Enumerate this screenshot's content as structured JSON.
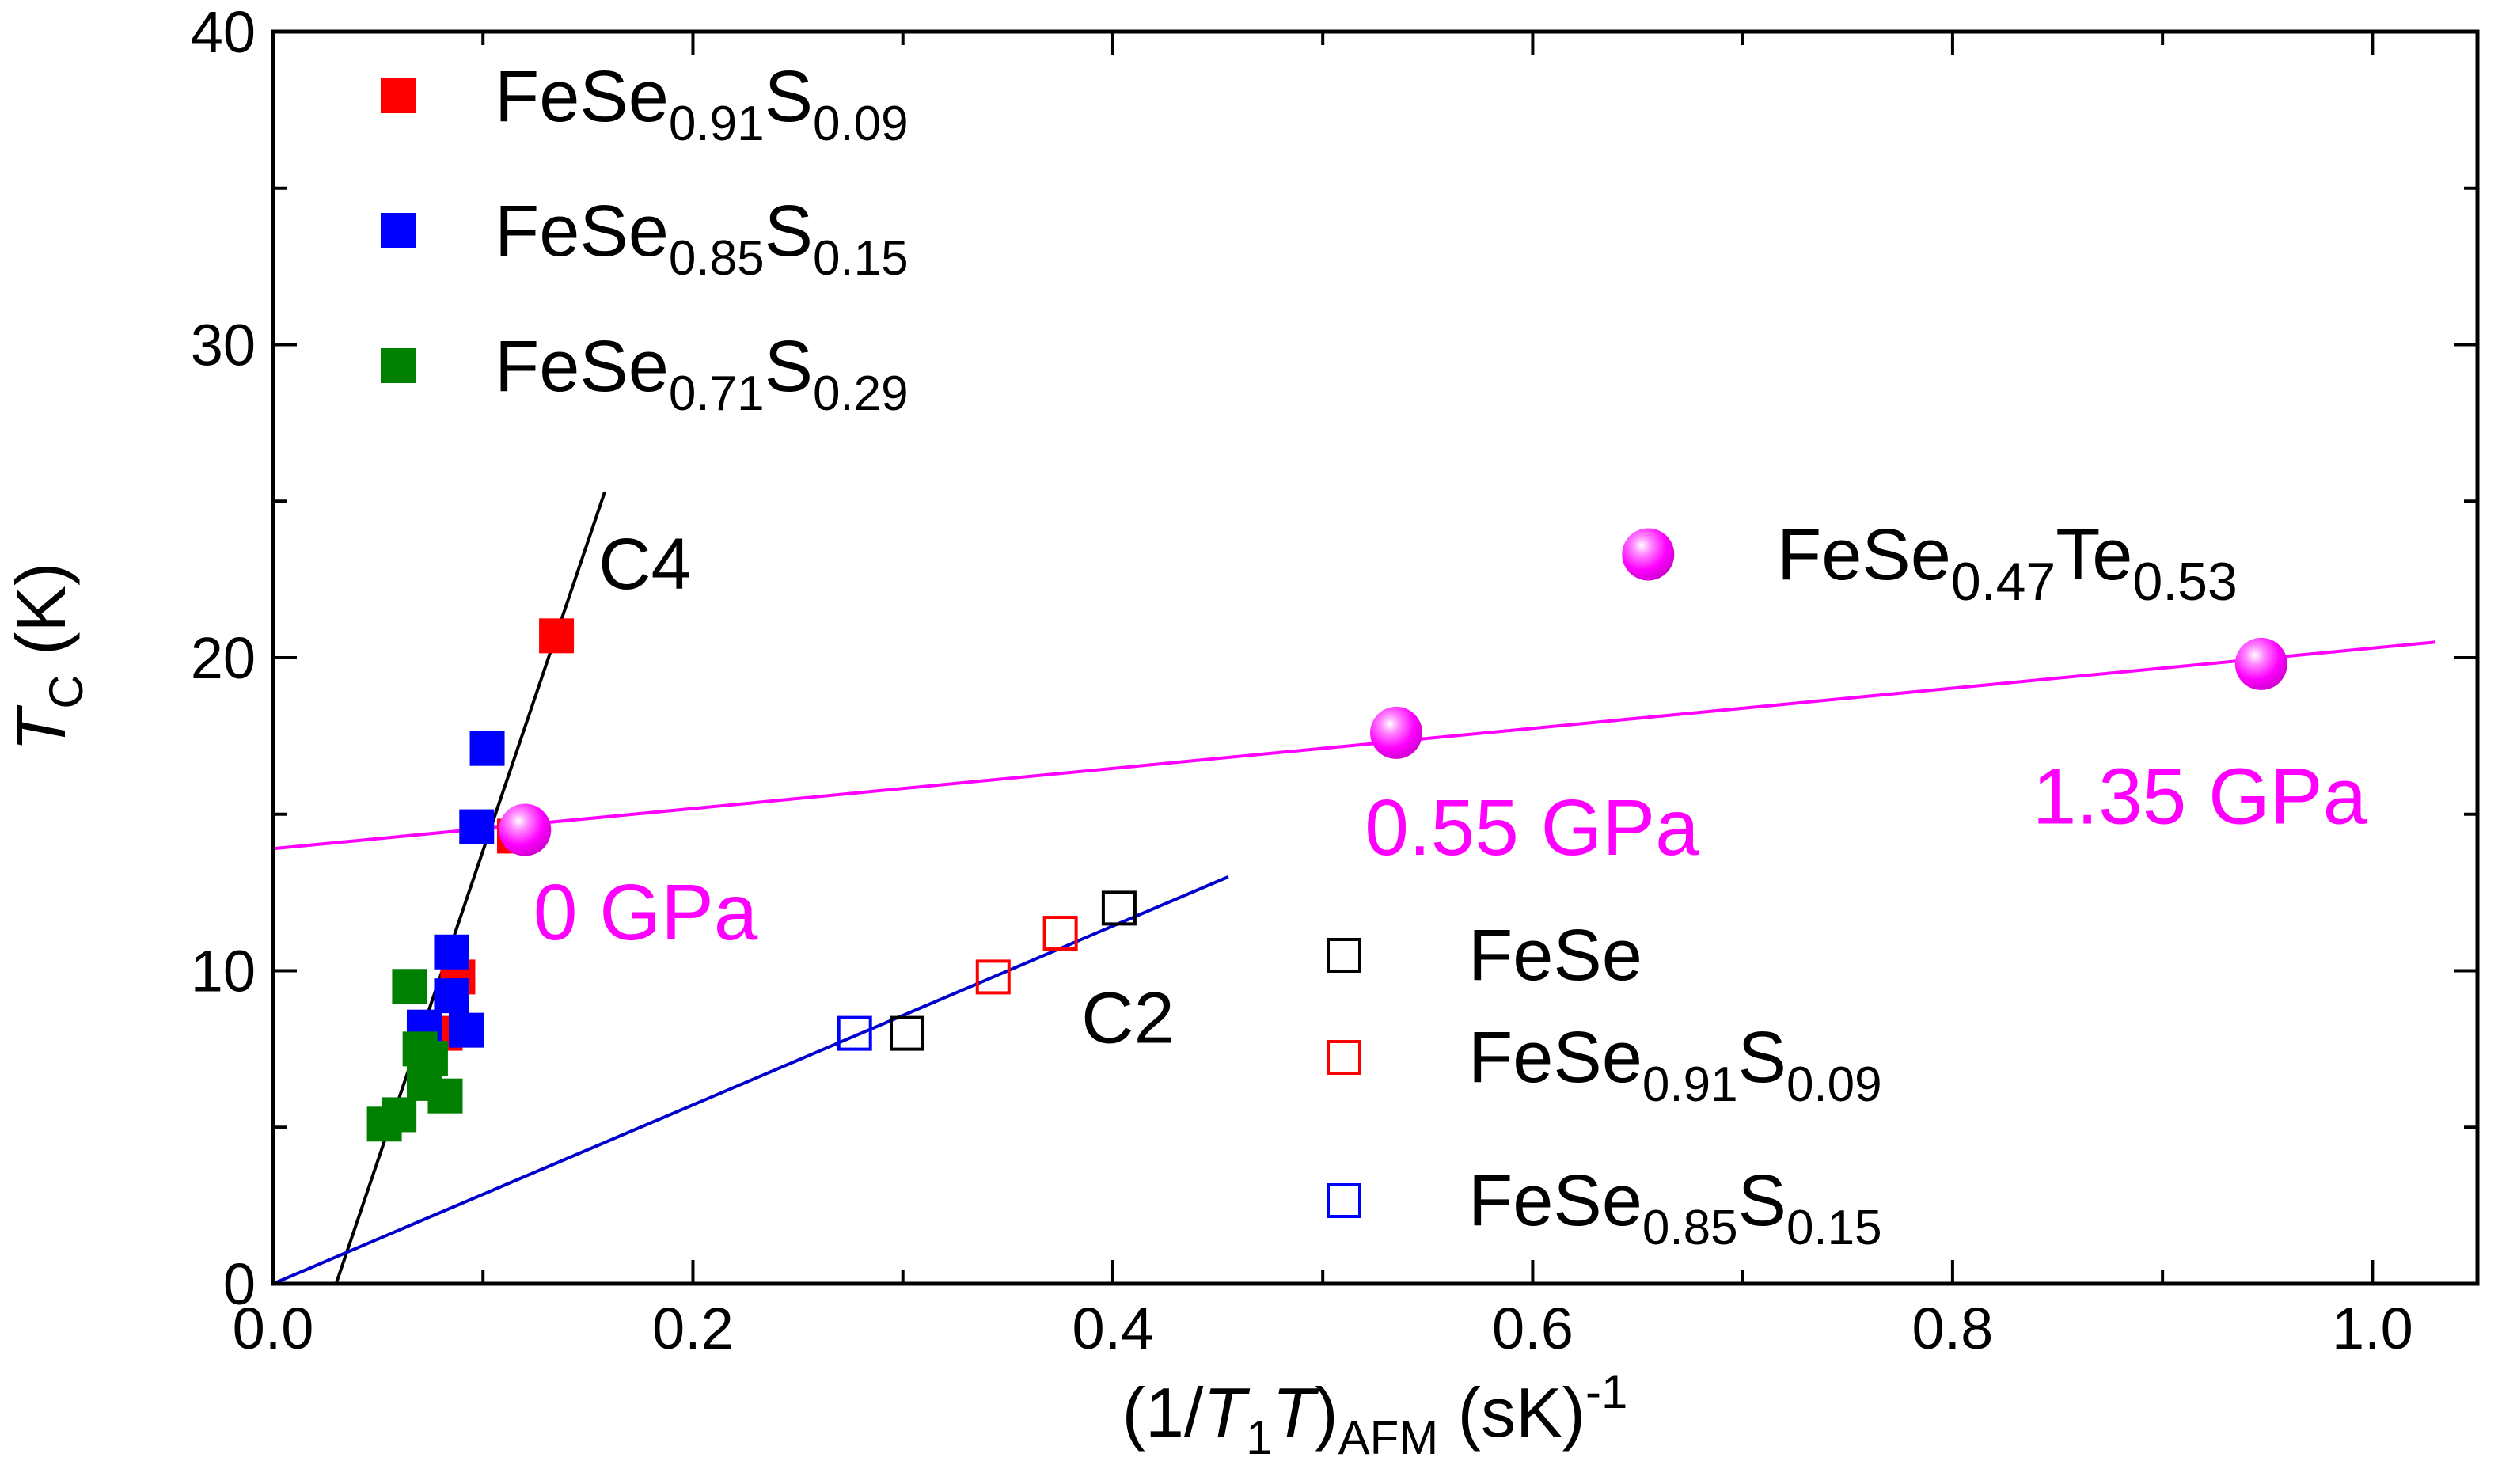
{
  "chart_data": {
    "type": "scatter",
    "xlabel": {
      "main": "(1/",
      "t": "T",
      "t_sub": "1",
      "t2": "T",
      "close": ")",
      "afm_sub": "AFM",
      "unit": " (sK)",
      "unit_sup": "-1"
    },
    "ylabel": {
      "t": "T",
      "t_sub": "C",
      "unit": " (K)"
    },
    "xlim": [
      0.0,
      1.05
    ],
    "ylim": [
      0,
      40
    ],
    "x_ticks": [
      0.0,
      0.2,
      0.4,
      0.6,
      0.8,
      1.0
    ],
    "x_tick_labels": [
      "0.0",
      "0.2",
      "0.4",
      "0.6",
      "0.8",
      "1.0"
    ],
    "y_ticks": [
      0,
      10,
      20,
      30,
      40
    ],
    "y_tick_labels": [
      "0",
      "10",
      "20",
      "30",
      "40"
    ],
    "series": [
      {
        "name": "FeSe0.91S0.09 (C4)",
        "marker": "square-filled",
        "color": "#ff0000",
        "points": [
          [
            0.135,
            20.7
          ],
          [
            0.115,
            14.3
          ],
          [
            0.088,
            9.8
          ],
          [
            0.082,
            8.0
          ]
        ]
      },
      {
        "name": "FeSe0.85S0.15 (C4)",
        "marker": "square-filled",
        "color": "#0000ff",
        "points": [
          [
            0.102,
            17.1
          ],
          [
            0.097,
            14.6
          ],
          [
            0.085,
            10.6
          ],
          [
            0.085,
            9.2
          ],
          [
            0.072,
            8.2
          ],
          [
            0.092,
            8.1
          ]
        ]
      },
      {
        "name": "FeSe0.71S0.29 (C4)",
        "marker": "square-filled",
        "color": "#008000",
        "points": [
          [
            0.065,
            9.5
          ],
          [
            0.07,
            7.5
          ],
          [
            0.075,
            7.2
          ],
          [
            0.072,
            6.4
          ],
          [
            0.082,
            6.0
          ],
          [
            0.06,
            5.4
          ],
          [
            0.053,
            5.1
          ]
        ]
      },
      {
        "name": "FeSe",
        "marker": "square-open",
        "color": "#000000",
        "points": [
          [
            0.403,
            12.0
          ],
          [
            0.302,
            8.0
          ]
        ]
      },
      {
        "name": "FeSe0.91S0.09 (C2)",
        "marker": "square-open",
        "color": "#ff0000",
        "points": [
          [
            0.375,
            11.2
          ],
          [
            0.343,
            9.8
          ]
        ]
      },
      {
        "name": "FeSe0.85S0.15 (C2)",
        "marker": "square-open",
        "color": "#0000ff",
        "points": [
          [
            0.277,
            8.0
          ]
        ]
      },
      {
        "name": "FeSe0.47Te0.53",
        "marker": "sphere",
        "color": "#ff00ff",
        "points": [
          [
            0.12,
            14.5
          ],
          [
            0.535,
            17.6
          ],
          [
            0.947,
            19.8
          ]
        ]
      }
    ],
    "fit_lines": [
      {
        "name": "C4 line",
        "color": "#000000",
        "x": [
          0.03,
          0.158
        ],
        "y": [
          0,
          25.3
        ]
      },
      {
        "name": "C2 line",
        "color": "#0000cc",
        "x": [
          0.0,
          0.455
        ],
        "y": [
          0,
          13.0
        ]
      },
      {
        "name": "FeSeTe line",
        "color": "#ff00ff",
        "x": [
          0.0,
          1.03
        ],
        "y": [
          13.9,
          20.5
        ]
      }
    ],
    "legend_top_left": [
      {
        "base": "FeSe",
        "sub1": "0.91",
        "el": "S",
        "sub2": "0.09",
        "color": "#ff0000"
      },
      {
        "base": "FeSe",
        "sub1": "0.85",
        "el": "S",
        "sub2": "0.15",
        "color": "#0000ff"
      },
      {
        "base": "FeSe",
        "sub1": "0.71",
        "el": "S",
        "sub2": "0.29",
        "color": "#008000"
      }
    ],
    "legend_bottom_right": [
      {
        "base": "FeSe",
        "sub1": "",
        "el": "",
        "sub2": "",
        "color": "#000000"
      },
      {
        "base": "FeSe",
        "sub1": "0.91",
        "el": "S",
        "sub2": "0.09",
        "color": "#ff0000"
      },
      {
        "base": "FeSe",
        "sub1": "0.85",
        "el": "S",
        "sub2": "0.15",
        "color": "#0000ff"
      }
    ],
    "legend_sphere": {
      "base": "FeSe",
      "sub1": "0.47",
      "el": "Te",
      "sub2": "0.53",
      "color": "#ff00ff",
      "marker_at": [
        0.655,
        23.3
      ]
    },
    "annotations": {
      "c4": {
        "text": "C4",
        "at": [
          0.155,
          22.2
        ]
      },
      "c2": {
        "text": "C2",
        "at": [
          0.385,
          7.7
        ]
      },
      "p0": {
        "text": "0 GPa",
        "at": [
          0.124,
          11.0
        ]
      },
      "p055": {
        "text": "0.55 GPa",
        "at": [
          0.52,
          13.7
        ]
      },
      "p135": {
        "text": "1.35 GPa",
        "at": [
          0.838,
          14.7
        ]
      }
    }
  }
}
